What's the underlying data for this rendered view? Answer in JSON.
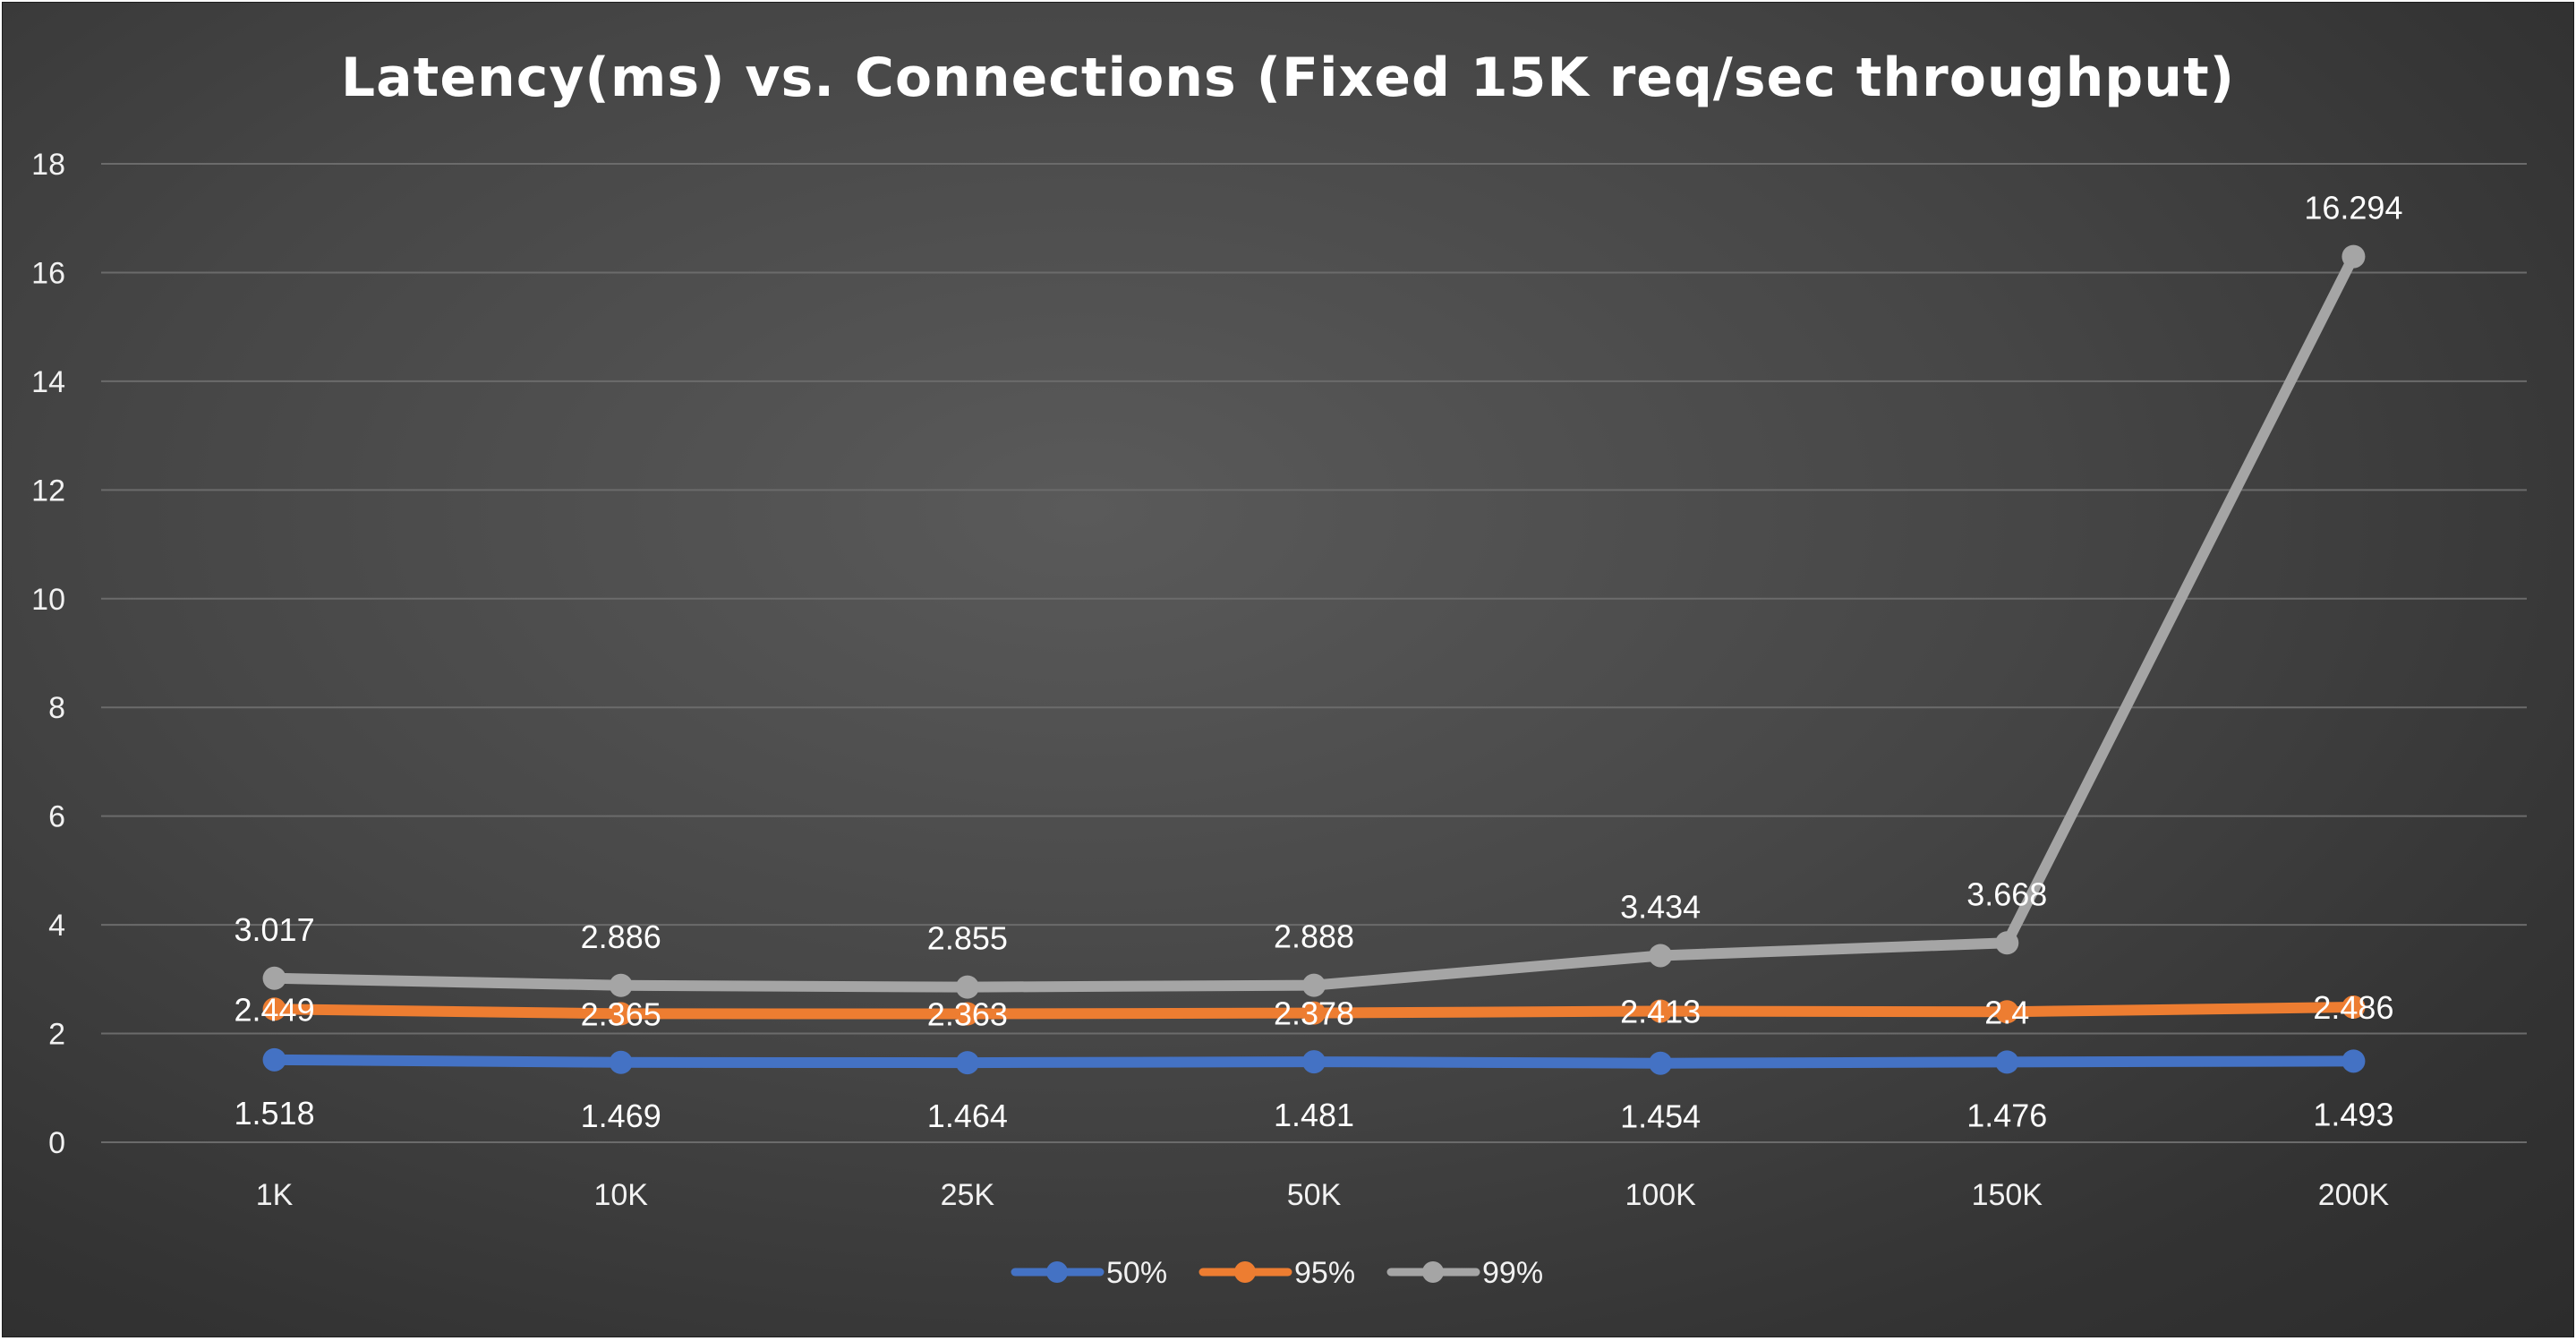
{
  "chart_data": {
    "type": "line",
    "title": "Latency(ms) vs. Connections (Fixed 15K req/sec throughput)",
    "xlabel": "",
    "ylabel": "",
    "categories": [
      "1K",
      "10K",
      "25K",
      "50K",
      "100K",
      "150K",
      "200K"
    ],
    "ylim": [
      0,
      18
    ],
    "yticks": [
      "0",
      "2",
      "4",
      "6",
      "8",
      "10",
      "12",
      "14",
      "16",
      "18"
    ],
    "grid": true,
    "legend_position": "bottom",
    "series": [
      {
        "name": "50%",
        "color": "#4472c4",
        "values": [
          1.518,
          1.469,
          1.464,
          1.481,
          1.454,
          1.476,
          1.493
        ],
        "labels": [
          "1.518",
          "1.469",
          "1.464",
          "1.481",
          "1.454",
          "1.476",
          "1.493"
        ],
        "label_position": "below"
      },
      {
        "name": "95%",
        "color": "#ed7d31",
        "values": [
          2.449,
          2.365,
          2.363,
          2.378,
          2.413,
          2.4,
          2.486
        ],
        "labels": [
          "2.449",
          "2.365",
          "2.363",
          "2.378",
          "2.413",
          "2.4",
          "2.486"
        ],
        "label_position": "center"
      },
      {
        "name": "99%",
        "color": "#a5a5a5",
        "values": [
          3.017,
          2.886,
          2.855,
          2.888,
          3.434,
          3.668,
          16.294
        ],
        "labels": [
          "3.017",
          "2.886",
          "2.855",
          "2.888",
          "3.434",
          "3.668",
          "16.294"
        ],
        "label_position": "above"
      }
    ]
  }
}
